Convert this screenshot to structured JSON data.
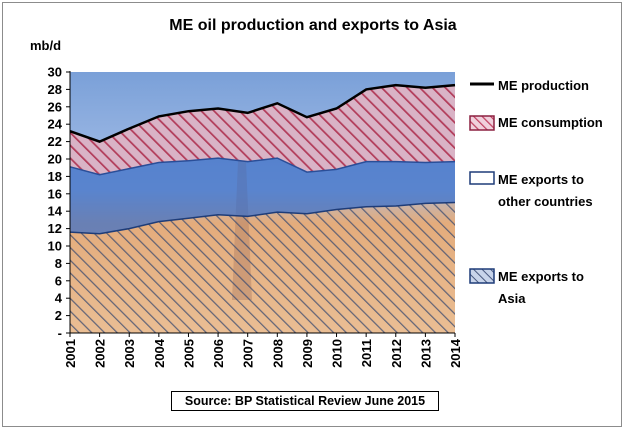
{
  "chart_data": {
    "type": "area",
    "title": "ME oil production and exports to Asia",
    "ylabel": "mb/d",
    "xlabel": "",
    "ylim": [
      0,
      30
    ],
    "yticks": [
      "-",
      "2",
      "4",
      "6",
      "8",
      "10",
      "12",
      "14",
      "16",
      "18",
      "20",
      "22",
      "24",
      "26",
      "28",
      "30"
    ],
    "categories": [
      "2001",
      "2002",
      "2003",
      "2004",
      "2005",
      "2006",
      "2007",
      "2008",
      "2009",
      "2010",
      "2011",
      "2012",
      "2013",
      "2014"
    ],
    "series": [
      {
        "name": "ME production",
        "values": [
          23.2,
          22.0,
          23.5,
          24.9,
          25.5,
          25.8,
          25.3,
          26.4,
          24.8,
          25.8,
          28.0,
          28.5,
          28.2,
          28.5
        ]
      },
      {
        "name": "ME consumption",
        "values": [
          4.1,
          3.8,
          4.6,
          5.3,
          5.7,
          5.7,
          5.6,
          6.3,
          6.3,
          7.0,
          8.3,
          8.8,
          8.6,
          8.8
        ]
      },
      {
        "name": "ME exports to other countries",
        "values": [
          7.5,
          6.8,
          6.9,
          6.8,
          6.7,
          6.6,
          6.3,
          6.2,
          4.8,
          4.6,
          5.2,
          5.2,
          4.8,
          4.7
        ]
      },
      {
        "name": "ME exports to Asia",
        "values": [
          11.6,
          11.4,
          12.0,
          12.8,
          13.2,
          13.6,
          13.4,
          13.9,
          13.7,
          14.2,
          14.5,
          14.6,
          14.9,
          15.0
        ]
      }
    ],
    "legend_position": "right",
    "grid": false,
    "colors": {
      "production_line": "#000000",
      "consumption_fill": "#c8a0b4",
      "consumption_hatch": "#e0506a",
      "other_exports_fill": "#4a78c8",
      "asia_fill": "#b8c8e8",
      "asia_hatch": "#1e3c70",
      "background_photo": "#e8b888"
    },
    "source": "Source: BP Statistical Review June 2015"
  }
}
